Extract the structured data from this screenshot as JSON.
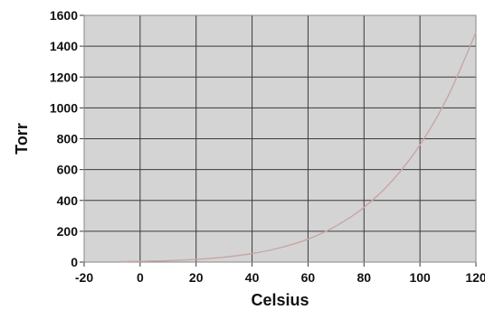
{
  "chart_data": {
    "type": "line",
    "title": "",
    "xlabel": "Celsius",
    "ylabel": "Torr",
    "xlim": [
      -20,
      120
    ],
    "ylim": [
      0,
      1600
    ],
    "x_ticks": [
      -20,
      0,
      20,
      40,
      60,
      80,
      100,
      120
    ],
    "y_ticks": [
      0,
      200,
      400,
      600,
      800,
      1000,
      1200,
      1400,
      1600
    ],
    "grid": true,
    "legend": "none",
    "colors": {
      "plot_background": "#d4d4d4",
      "grid": "#3a3a3a",
      "line": "#c9a5a5",
      "frame": "#888888"
    },
    "series": [
      {
        "x": [
          -7,
          0,
          10,
          20,
          30,
          40,
          50,
          60,
          70,
          80,
          90,
          100,
          110,
          120
        ],
        "y": [
          3,
          5,
          9,
          18,
          32,
          55,
          93,
          149,
          234,
          355,
          526,
          760,
          1075,
          1489
        ]
      }
    ]
  }
}
